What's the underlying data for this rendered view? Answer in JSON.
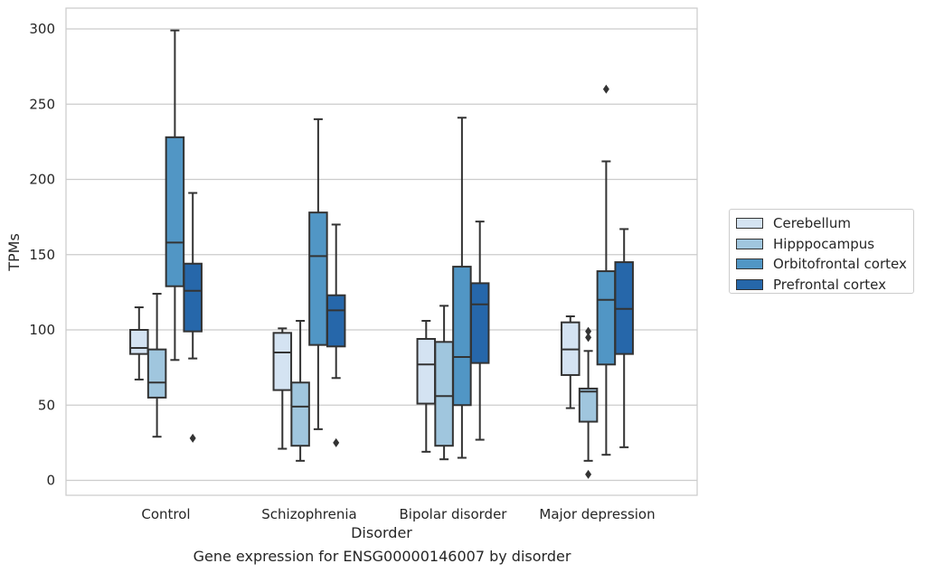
{
  "chart_data": {
    "type": "box",
    "title": "",
    "caption": "Gene expression for ENSG00000146007 by disorder",
    "xlabel": "Disorder",
    "ylabel": "TPMs",
    "ylim": [
      -10,
      314
    ],
    "yticks": [
      0,
      50,
      100,
      150,
      200,
      250,
      300
    ],
    "grid": "horizontal",
    "legend_position": "right",
    "categories": [
      "Control",
      "Schizophrenia",
      "Bipolar disorder",
      "Major depression"
    ],
    "series": [
      {
        "name": "Cerebellum",
        "color": "#d4e3f2",
        "boxes": [
          {
            "whislo": 67,
            "q1": 84,
            "med": 88,
            "q3": 100,
            "whishi": 115,
            "fliers": []
          },
          {
            "whislo": 21,
            "q1": 60,
            "med": 85,
            "q3": 98,
            "whishi": 101,
            "fliers": []
          },
          {
            "whislo": 19,
            "q1": 51,
            "med": 77,
            "q3": 94,
            "whishi": 106,
            "fliers": []
          },
          {
            "whislo": 48,
            "q1": 70,
            "med": 87,
            "q3": 105,
            "whishi": 109,
            "fliers": []
          }
        ]
      },
      {
        "name": "Hipppocampus",
        "color": "#a0c6de",
        "boxes": [
          {
            "whislo": 29,
            "q1": 55,
            "med": 65,
            "q3": 87,
            "whishi": 124,
            "fliers": []
          },
          {
            "whislo": 13,
            "q1": 23,
            "med": 49,
            "q3": 65,
            "whishi": 106,
            "fliers": []
          },
          {
            "whislo": 14,
            "q1": 23,
            "med": 56,
            "q3": 92,
            "whishi": 116,
            "fliers": []
          },
          {
            "whislo": 13,
            "q1": 39,
            "med": 59,
            "q3": 61,
            "whishi": 86,
            "fliers": [
              4,
              95,
              99
            ]
          }
        ]
      },
      {
        "name": "Orbitofrontal cortex",
        "color": "#5196c5",
        "boxes": [
          {
            "whislo": 80,
            "q1": 129,
            "med": 158,
            "q3": 228,
            "whishi": 299,
            "fliers": []
          },
          {
            "whislo": 34,
            "q1": 90,
            "med": 149,
            "q3": 178,
            "whishi": 240,
            "fliers": []
          },
          {
            "whislo": 15,
            "q1": 50,
            "med": 82,
            "q3": 142,
            "whishi": 241,
            "fliers": []
          },
          {
            "whislo": 17,
            "q1": 77,
            "med": 120,
            "q3": 139,
            "whishi": 212,
            "fliers": [
              260
            ]
          }
        ]
      },
      {
        "name": "Prefrontal cortex",
        "color": "#2667aa",
        "boxes": [
          {
            "whislo": 81,
            "q1": 99,
            "med": 126,
            "q3": 144,
            "whishi": 191,
            "fliers": [
              28
            ]
          },
          {
            "whislo": 68,
            "q1": 89,
            "med": 113,
            "q3": 123,
            "whishi": 170,
            "fliers": [
              25
            ]
          },
          {
            "whislo": 27,
            "q1": 78,
            "med": 117,
            "q3": 131,
            "whishi": 172,
            "fliers": []
          },
          {
            "whislo": 22,
            "q1": 84,
            "med": 114,
            "q3": 145,
            "whishi": 167,
            "fliers": []
          }
        ]
      }
    ]
  }
}
